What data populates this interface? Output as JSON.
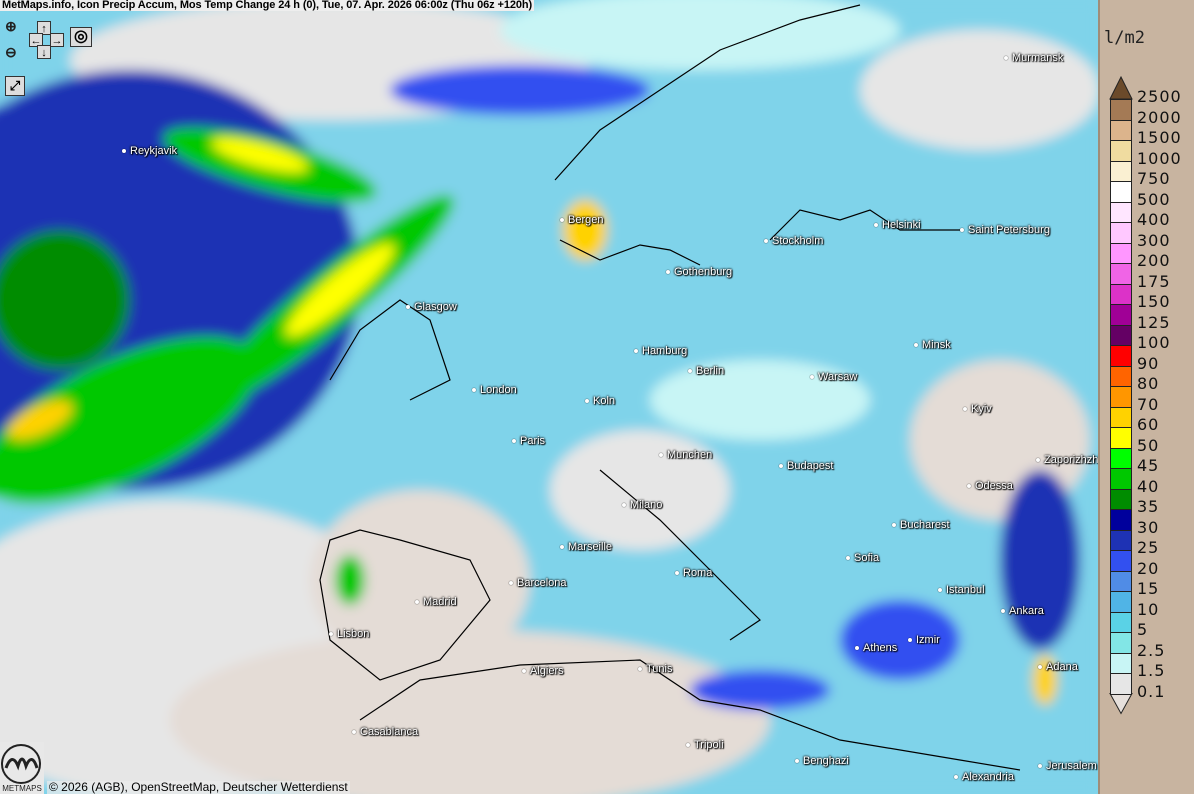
{
  "header": {
    "title": "MetMaps.info, Icon Precip Accum, Mos Temp Change 24 h (0), Tue, 07. Apr. 2026 06:00z (Thu 06z +120h)"
  },
  "controls": {
    "zoom_in": "zoom-in-icon",
    "zoom_out": "zoom-out-icon",
    "pan_up": "↑",
    "pan_down": "↓",
    "pan_left": "←",
    "pan_right": "→",
    "camera": "camera-icon",
    "fullscreen": "fullscreen-icon"
  },
  "cities": [
    "Reykjavik",
    "Bergen",
    "Stockholm",
    "Helsinki",
    "Saint Petersburg",
    "Murmansk",
    "Gothenburg",
    "Glasgow",
    "Hamburg",
    "Berlin",
    "Minsk",
    "Warsaw",
    "London",
    "Koln",
    "Kyiv",
    "Paris",
    "Munchen",
    "Budapest",
    "Zaporizhzhia",
    "Odessa",
    "Milano",
    "Bucharest",
    "Marseille",
    "Sofia",
    "Roma",
    "Barcelona",
    "Istanbul",
    "Madrid",
    "Ankara",
    "Lisbon",
    "Izmir",
    "Athens",
    "Adana",
    "Algiers",
    "Tunis",
    "Casablanca",
    "Tripoli",
    "Benghazi",
    "Alexandria",
    "Jerusalem"
  ],
  "legend": {
    "unit": "l/m2",
    "labels": [
      "2500",
      "2000",
      "1500",
      "1000",
      "750",
      "500",
      "400",
      "300",
      "200",
      "175",
      "150",
      "125",
      "100",
      "90",
      "80",
      "70",
      "60",
      "50",
      "45",
      "40",
      "35",
      "30",
      "25",
      "20",
      "15",
      "10",
      "5",
      "2.5",
      "1.5",
      "0.1"
    ],
    "colors": [
      "#a47a55",
      "#dcb48c",
      "#f0dca0",
      "#faf0d2",
      "#ffffff",
      "#ffe6ff",
      "#ffc8ff",
      "#ff96ff",
      "#f064e6",
      "#dc32c8",
      "#a00096",
      "#640064",
      "#ff0000",
      "#ff6400",
      "#ff9600",
      "#ffd200",
      "#ffff00",
      "#00ff00",
      "#00c800",
      "#008c00",
      "#00009c",
      "#1e32b4",
      "#3250f0",
      "#508ce6",
      "#50b4e6",
      "#5ad2e6",
      "#82e6e6",
      "#c8f5f5",
      "#e6e6e6"
    ],
    "top_color": "#6b4a2a",
    "bottom_color": "#e6e0dc"
  },
  "footer": {
    "copyright": "© 2026 (AGB), OpenStreetMap, Deutscher Wetterdienst",
    "logo_text": "METMAPS"
  }
}
